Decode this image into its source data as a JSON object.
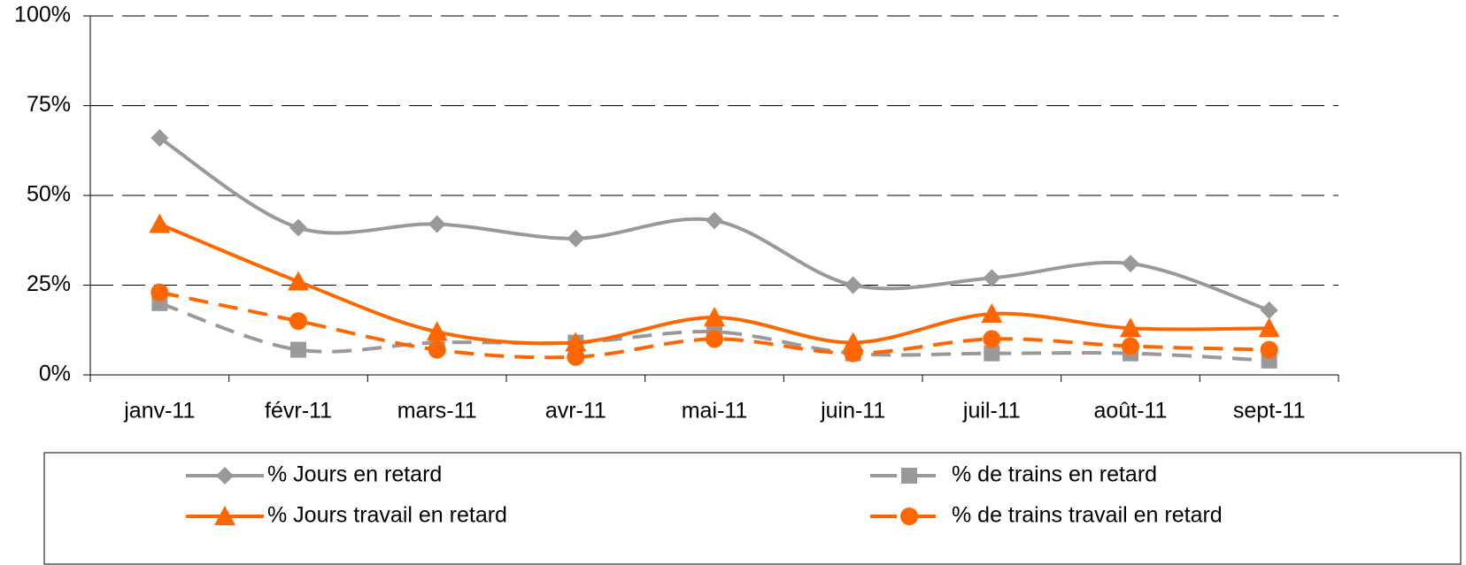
{
  "chart_data": {
    "type": "line",
    "categories": [
      "janv-11",
      "févr-11",
      "mars-11",
      "avr-11",
      "mai-11",
      "juin-11",
      "juil-11",
      "août-11",
      "sept-11"
    ],
    "series": [
      {
        "name": "% Jours en retard",
        "color": "#999999",
        "dash": false,
        "marker": "diamond",
        "values": [
          66,
          41,
          42,
          38,
          43,
          25,
          27,
          31,
          18
        ]
      },
      {
        "name": "% de trains en retard",
        "color": "#999999",
        "dash": true,
        "marker": "square",
        "values": [
          20,
          7,
          9,
          9,
          12,
          6,
          6,
          6,
          4
        ]
      },
      {
        "name": "% Jours travail en retard",
        "color": "#ff6600",
        "dash": false,
        "marker": "triangle",
        "values": [
          42,
          26,
          12,
          9,
          16,
          9,
          17,
          13,
          13
        ]
      },
      {
        "name": "% de trains travail en retard",
        "color": "#ff6600",
        "dash": true,
        "marker": "circle",
        "values": [
          23,
          15,
          7,
          5,
          10,
          6,
          10,
          8,
          7
        ]
      }
    ],
    "ylim": [
      0,
      100
    ],
    "yticks": [
      {
        "value": 0,
        "label": "0%"
      },
      {
        "value": 25,
        "label": "25%"
      },
      {
        "value": 50,
        "label": "50%"
      },
      {
        "value": 75,
        "label": "75%"
      },
      {
        "value": 100,
        "label": "100%"
      }
    ],
    "grid": true,
    "smooth": true,
    "legend": "bottom"
  }
}
